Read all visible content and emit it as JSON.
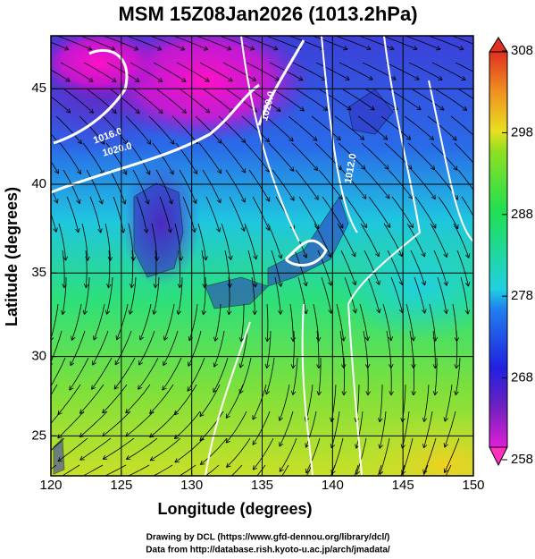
{
  "chart_data": {
    "type": "map",
    "projection": "mercator",
    "title": "MSM 15Z08Jan2026 (1013.2hPa)",
    "xlabel": "Longitude (degrees)",
    "ylabel": "Latitude  (degrees)",
    "xlim": [
      120,
      150
    ],
    "ylim": [
      22.4,
      47.6
    ],
    "xticks": [
      120,
      125,
      130,
      135,
      140,
      145,
      150
    ],
    "yticks": [
      25,
      30,
      35,
      40,
      45
    ],
    "grid": true,
    "colorbar": {
      "lim": [
        258,
        308
      ],
      "ticks": [
        258,
        268,
        278,
        288,
        298,
        308
      ]
    },
    "contour_labels": [
      "1016.0",
      "1020.0",
      "1020.0",
      "1012.0"
    ],
    "footer": [
      "Drawing by DCL (https://www.gfd-dennou.org/library/dcl/)",
      "Data from http://database.rish.kyoto-u.ac.jp/arch/jmadata/"
    ]
  }
}
